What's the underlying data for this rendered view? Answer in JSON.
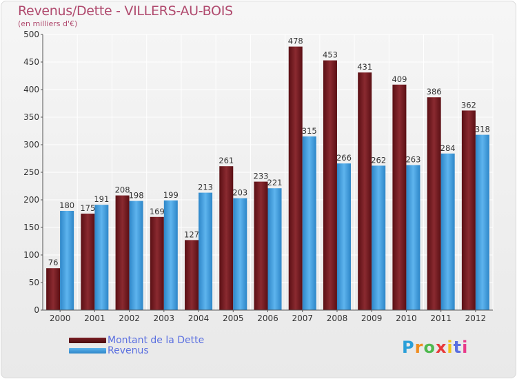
{
  "header": {
    "title": "Revenus/Dette - VILLERS-AU-BOIS",
    "subtitle": "(en milliers d'€)"
  },
  "chart_data": {
    "type": "bar",
    "title": "Revenus/Dette - VILLERS-AU-BOIS",
    "ylabel": "(en milliers d'€)",
    "xlabel": "",
    "ylim": [
      0,
      500
    ],
    "yticks": [
      0,
      50,
      100,
      150,
      200,
      250,
      300,
      350,
      400,
      450,
      500
    ],
    "categories": [
      "2000",
      "2001",
      "2002",
      "2003",
      "2004",
      "2005",
      "2006",
      "2007",
      "2008",
      "2009",
      "2010",
      "2011",
      "2012"
    ],
    "series": [
      {
        "name": "Montant de la Dette",
        "color": "#7a1f24",
        "values": [
          76,
          175,
          208,
          169,
          127,
          261,
          233,
          478,
          453,
          431,
          409,
          386,
          362
        ]
      },
      {
        "name": "Revenus",
        "color": "#3d9ee0",
        "values": [
          180,
          191,
          198,
          199,
          213,
          203,
          221,
          315,
          266,
          262,
          263,
          284,
          318
        ]
      }
    ],
    "grid": true,
    "legend": "bottom-left"
  },
  "legend": {
    "dette_label": "Montant de la Dette",
    "revenus_label": "Revenus"
  },
  "logo": {
    "parts": [
      "P",
      "r",
      "o",
      "x",
      "i",
      "t",
      "i"
    ]
  }
}
